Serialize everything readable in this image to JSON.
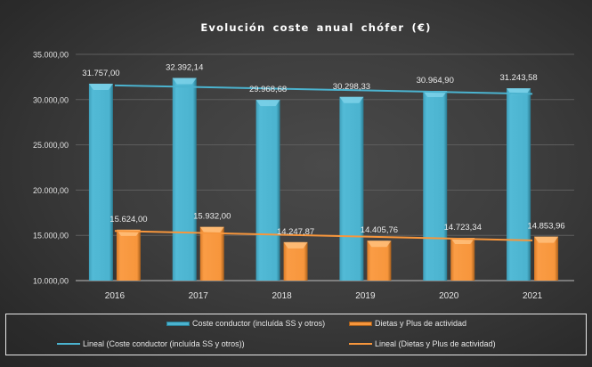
{
  "chart_data": {
    "type": "bar",
    "title": "Evolución  coste anual chófer (€)",
    "xlabel": "",
    "ylabel": "",
    "categories": [
      "2016",
      "2017",
      "2018",
      "2019",
      "2020",
      "2021"
    ],
    "ylim": [
      10000,
      35000
    ],
    "yticks": [
      10000,
      15000,
      20000,
      25000,
      30000,
      35000
    ],
    "ytick_labels": [
      "10.000,00",
      "15.000,00",
      "20.000,00",
      "25.000,00",
      "30.000,00",
      "35.000,00"
    ],
    "grid": true,
    "legend_position": "bottom",
    "series": [
      {
        "name": "Coste conductor (incluida SS y otros)",
        "color": "#4bb3cf",
        "values": [
          31757.0,
          32392.14,
          29968.68,
          30298.33,
          30964.9,
          31243.58
        ],
        "labels": [
          "31.757,00",
          "32.392,14",
          "29.968,68",
          "30.298,33",
          "30.964,90",
          "31.243,58"
        ]
      },
      {
        "name": "Dietas y Plus de actividad",
        "color": "#f7963c",
        "values": [
          15624.0,
          15932.0,
          14247.87,
          14405.76,
          14723.34,
          14853.96
        ],
        "labels": [
          "15.624,00",
          "15.932,00",
          "14.247,87",
          "14.405,76",
          "14.723,34",
          "14.853,96"
        ]
      }
    ],
    "trendlines": [
      {
        "name": "Lineal (Coste conductor (incluida SS y otros))",
        "series": 0,
        "type": "linear",
        "color": "#4bb3cf"
      },
      {
        "name": "Lineal (Dietas y Plus de actividad)",
        "series": 1,
        "type": "linear",
        "color": "#f7963c"
      }
    ]
  },
  "legend": {
    "items": [
      {
        "label": "Coste conductor (incluída SS y otros)",
        "kind": "bar",
        "color": "#4bb3cf"
      },
      {
        "label": "Dietas y Plus de actividad",
        "kind": "bar",
        "color": "#f7963c"
      },
      {
        "label": "Lineal (Coste conductor (incluída SS y otros))",
        "kind": "line",
        "color": "#4bb3cf"
      },
      {
        "label": "Lineal (Dietas y Plus de actividad)",
        "kind": "line",
        "color": "#f7963c"
      }
    ]
  }
}
